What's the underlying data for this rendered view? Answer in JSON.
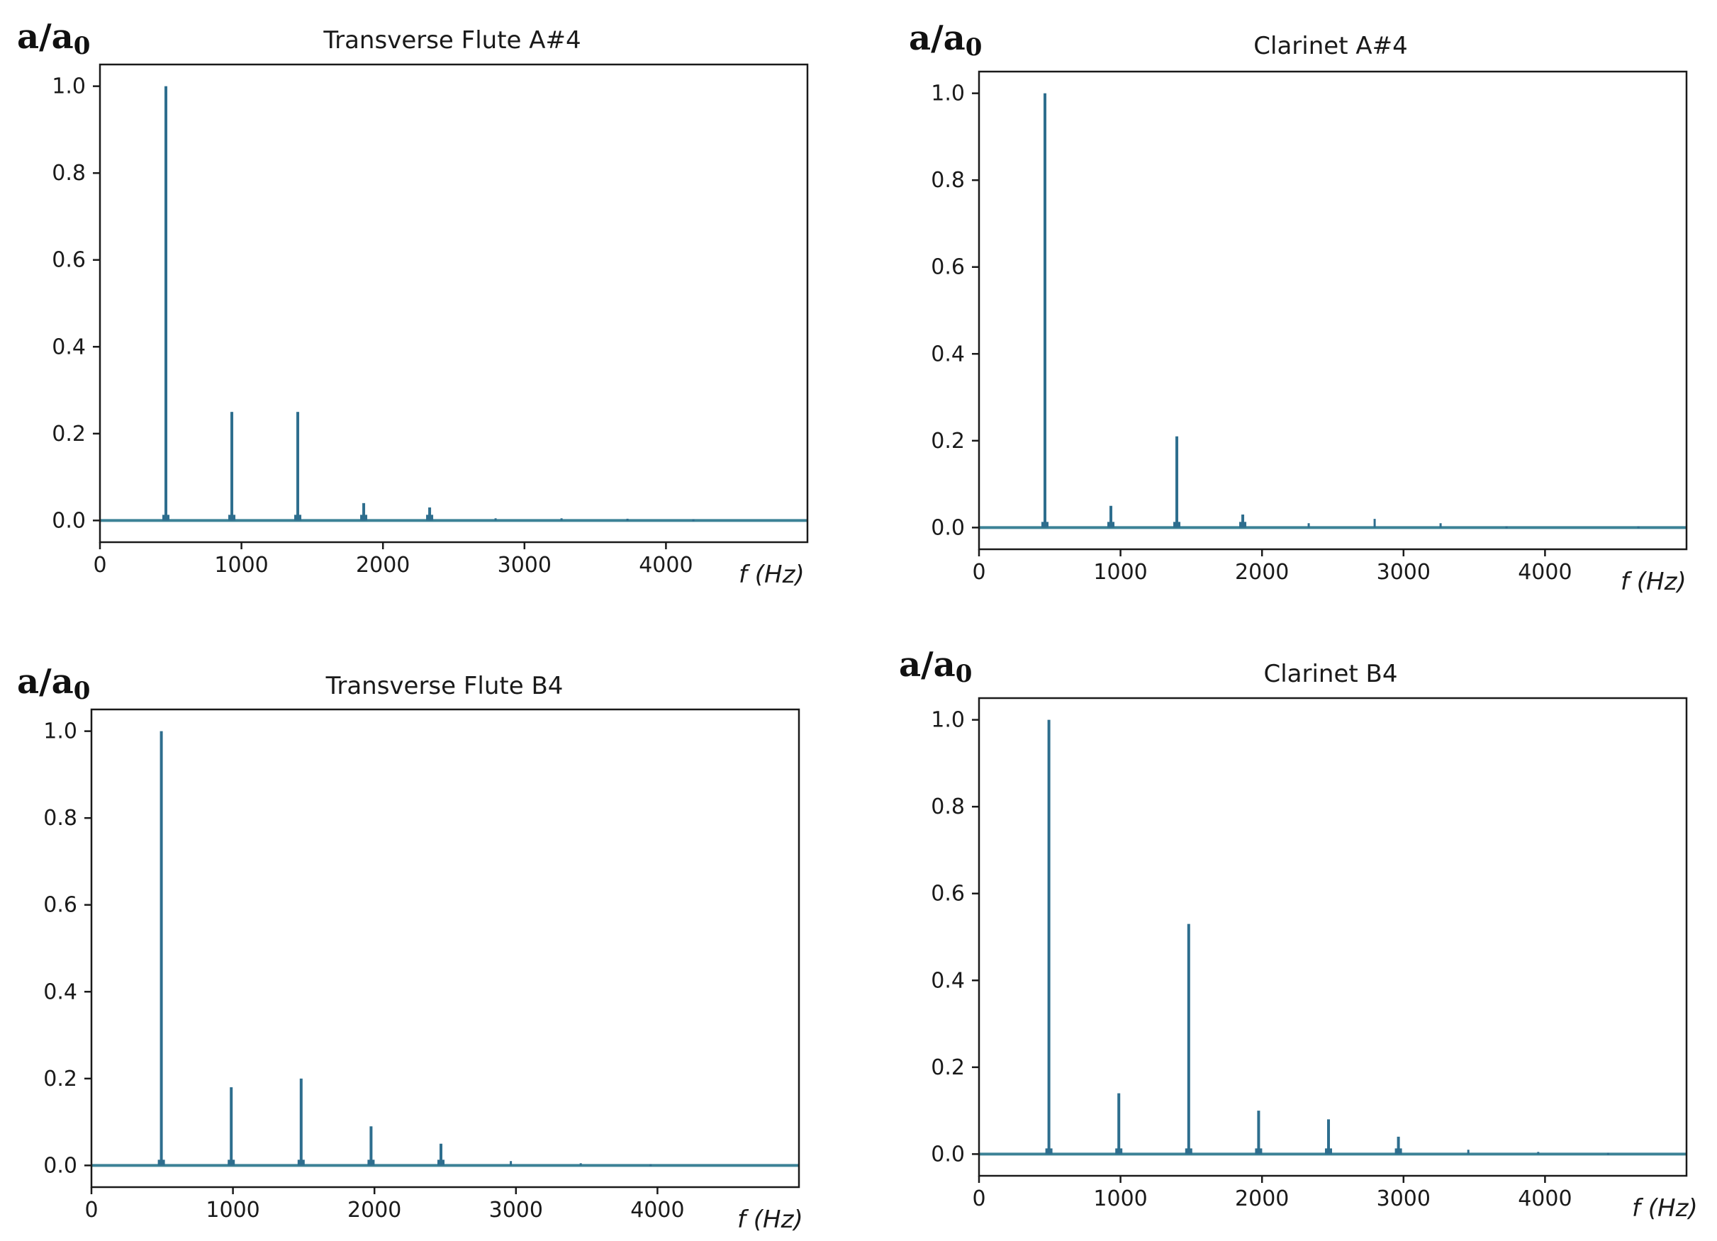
{
  "colors": {
    "series": "#2e6e8e",
    "baseline": "#3c8296",
    "axis": "#1a1a1a"
  },
  "chart_data": [
    {
      "type": "line",
      "title": "Transverse Flute A#4",
      "ylabel_main": "a/a",
      "ylabel_sub": "0",
      "xlabel": "f (Hz)",
      "xlim": [
        0,
        5000
      ],
      "ylim": [
        -0.05,
        1.05
      ],
      "xticks": [
        0,
        1000,
        2000,
        3000,
        4000
      ],
      "yticks": [
        0.0,
        0.2,
        0.4,
        0.6,
        0.8,
        1.0
      ],
      "peaks": [
        {
          "f": 466,
          "a": 1.0
        },
        {
          "f": 932,
          "a": 0.25
        },
        {
          "f": 1398,
          "a": 0.25
        },
        {
          "f": 1864,
          "a": 0.04
        },
        {
          "f": 2330,
          "a": 0.03
        },
        {
          "f": 2796,
          "a": 0.005
        },
        {
          "f": 3262,
          "a": 0.005
        },
        {
          "f": 3728,
          "a": 0.004
        },
        {
          "f": 4194,
          "a": 0.003
        }
      ]
    },
    {
      "type": "line",
      "title": "Clarinet A#4",
      "ylabel_main": "a/a",
      "ylabel_sub": "0",
      "xlabel": "f (Hz)",
      "xlim": [
        0,
        5000
      ],
      "ylim": [
        -0.05,
        1.05
      ],
      "xticks": [
        0,
        1000,
        2000,
        3000,
        4000
      ],
      "yticks": [
        0.0,
        0.2,
        0.4,
        0.6,
        0.8,
        1.0
      ],
      "peaks": [
        {
          "f": 466,
          "a": 1.0
        },
        {
          "f": 932,
          "a": 0.05
        },
        {
          "f": 1398,
          "a": 0.21
        },
        {
          "f": 1864,
          "a": 0.03
        },
        {
          "f": 2330,
          "a": 0.01
        },
        {
          "f": 2796,
          "a": 0.02
        },
        {
          "f": 3262,
          "a": 0.01
        },
        {
          "f": 3728,
          "a": 0.003
        },
        {
          "f": 4660,
          "a": 0.003
        }
      ]
    },
    {
      "type": "line",
      "title": "Transverse Flute B4",
      "ylabel_main": "a/a",
      "ylabel_sub": "0",
      "xlabel": "f (Hz)",
      "xlim": [
        0,
        5000
      ],
      "ylim": [
        -0.05,
        1.05
      ],
      "xticks": [
        0,
        1000,
        2000,
        3000,
        4000
      ],
      "yticks": [
        0.0,
        0.2,
        0.4,
        0.6,
        0.8,
        1.0
      ],
      "peaks": [
        {
          "f": 494,
          "a": 1.0
        },
        {
          "f": 988,
          "a": 0.18
        },
        {
          "f": 1482,
          "a": 0.2
        },
        {
          "f": 1976,
          "a": 0.09
        },
        {
          "f": 2470,
          "a": 0.05
        },
        {
          "f": 2964,
          "a": 0.01
        },
        {
          "f": 3458,
          "a": 0.005
        },
        {
          "f": 3952,
          "a": 0.003
        }
      ]
    },
    {
      "type": "line",
      "title": "Clarinet B4",
      "ylabel_main": "a/a",
      "ylabel_sub": "0",
      "xlabel": "f (Hz)",
      "xlim": [
        0,
        5000
      ],
      "ylim": [
        -0.05,
        1.05
      ],
      "xticks": [
        0,
        1000,
        2000,
        3000,
        4000
      ],
      "yticks": [
        0.0,
        0.2,
        0.4,
        0.6,
        0.8,
        1.0
      ],
      "peaks": [
        {
          "f": 494,
          "a": 1.0
        },
        {
          "f": 988,
          "a": 0.14
        },
        {
          "f": 1482,
          "a": 0.53
        },
        {
          "f": 1976,
          "a": 0.1
        },
        {
          "f": 2470,
          "a": 0.08
        },
        {
          "f": 2964,
          "a": 0.04
        },
        {
          "f": 3458,
          "a": 0.01
        },
        {
          "f": 3952,
          "a": 0.005
        },
        {
          "f": 4446,
          "a": 0.003
        }
      ]
    }
  ]
}
